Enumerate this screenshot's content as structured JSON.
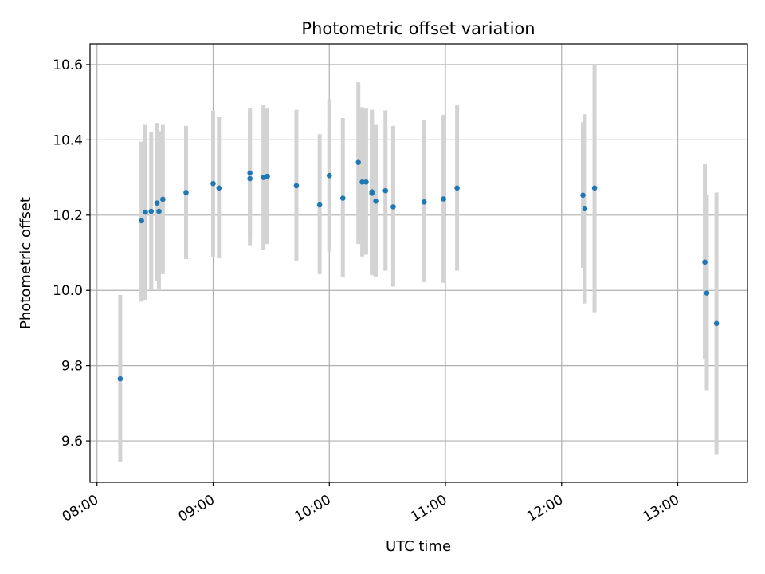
{
  "chart_data": {
    "type": "scatter",
    "title": "Photometric offset variation",
    "xlabel": "UTC time",
    "ylabel": "Photometric offset",
    "xlim_hours": [
      7.94,
      13.6
    ],
    "ylim": [
      9.49,
      10.655
    ],
    "grid": true,
    "x_ticks": [
      {
        "hour": 8,
        "label": "08:00"
      },
      {
        "hour": 9,
        "label": "09:00"
      },
      {
        "hour": 10,
        "label": "10:00"
      },
      {
        "hour": 11,
        "label": "11:00"
      },
      {
        "hour": 12,
        "label": "12:00"
      },
      {
        "hour": 13,
        "label": "13:00"
      }
    ],
    "y_ticks": [
      {
        "value": 9.6,
        "label": "9.6"
      },
      {
        "value": 9.8,
        "label": "9.8"
      },
      {
        "value": 10.0,
        "label": "10.0"
      },
      {
        "value": 10.2,
        "label": "10.2"
      },
      {
        "value": 10.4,
        "label": "10.4"
      },
      {
        "value": 10.6,
        "label": "10.6"
      }
    ],
    "point_color": "#1f77b4",
    "errorbar_color": "#d3d3d3",
    "points": [
      {
        "time": "08:12",
        "y": 9.765,
        "lo": 9.543,
        "hi": 9.988
      },
      {
        "time": "08:23",
        "y": 10.185,
        "lo": 9.97,
        "hi": 10.395
      },
      {
        "time": "08:25",
        "y": 10.208,
        "lo": 9.975,
        "hi": 10.44
      },
      {
        "time": "08:28",
        "y": 10.21,
        "lo": 10.0,
        "hi": 10.42
      },
      {
        "time": "08:31",
        "y": 10.232,
        "lo": 10.025,
        "hi": 10.445
      },
      {
        "time": "08:32",
        "y": 10.21,
        "lo": 10.003,
        "hi": 10.423
      },
      {
        "time": "08:34",
        "y": 10.242,
        "lo": 10.043,
        "hi": 10.44
      },
      {
        "time": "08:46",
        "y": 10.26,
        "lo": 10.083,
        "hi": 10.437
      },
      {
        "time": "09:00",
        "y": 10.284,
        "lo": 10.09,
        "hi": 10.477
      },
      {
        "time": "09:03",
        "y": 10.272,
        "lo": 10.085,
        "hi": 10.46
      },
      {
        "time": "09:19",
        "y": 10.312,
        "lo": 10.14,
        "hi": 10.485
      },
      {
        "time": "09:19",
        "y": 10.297,
        "lo": 10.12,
        "hi": 10.475
      },
      {
        "time": "09:26",
        "y": 10.3,
        "lo": 10.108,
        "hi": 10.492
      },
      {
        "time": "09:28",
        "y": 10.303,
        "lo": 10.123,
        "hi": 10.485
      },
      {
        "time": "09:43",
        "y": 10.278,
        "lo": 10.077,
        "hi": 10.48
      },
      {
        "time": "09:55",
        "y": 10.227,
        "lo": 10.043,
        "hi": 10.415
      },
      {
        "time": "10:00",
        "y": 10.305,
        "lo": 10.103,
        "hi": 10.508
      },
      {
        "time": "10:07",
        "y": 10.245,
        "lo": 10.035,
        "hi": 10.458
      },
      {
        "time": "10:15",
        "y": 10.34,
        "lo": 10.123,
        "hi": 10.553
      },
      {
        "time": "10:17",
        "y": 10.288,
        "lo": 10.09,
        "hi": 10.487
      },
      {
        "time": "10:19",
        "y": 10.288,
        "lo": 10.095,
        "hi": 10.483
      },
      {
        "time": "10:22",
        "y": 10.258,
        "lo": 10.04,
        "hi": 10.478
      },
      {
        "time": "10:22",
        "y": 10.262,
        "lo": 10.045,
        "hi": 10.48
      },
      {
        "time": "10:24",
        "y": 10.237,
        "lo": 10.035,
        "hi": 10.44
      },
      {
        "time": "10:29",
        "y": 10.265,
        "lo": 10.052,
        "hi": 10.478
      },
      {
        "time": "10:33",
        "y": 10.222,
        "lo": 10.01,
        "hi": 10.437
      },
      {
        "time": "10:49",
        "y": 10.235,
        "lo": 10.022,
        "hi": 10.452
      },
      {
        "time": "10:59",
        "y": 10.243,
        "lo": 10.02,
        "hi": 10.467
      },
      {
        "time": "11:06",
        "y": 10.272,
        "lo": 10.052,
        "hi": 10.492
      },
      {
        "time": "12:11",
        "y": 10.253,
        "lo": 10.06,
        "hi": 10.447
      },
      {
        "time": "12:12",
        "y": 10.217,
        "lo": 9.965,
        "hi": 10.468
      },
      {
        "time": "12:17",
        "y": 10.272,
        "lo": 9.942,
        "hi": 10.602
      },
      {
        "time": "13:14",
        "y": 10.075,
        "lo": 9.818,
        "hi": 10.335
      },
      {
        "time": "13:15",
        "y": 9.993,
        "lo": 9.735,
        "hi": 10.255
      },
      {
        "time": "13:20",
        "y": 9.912,
        "lo": 9.563,
        "hi": 10.26
      }
    ]
  }
}
